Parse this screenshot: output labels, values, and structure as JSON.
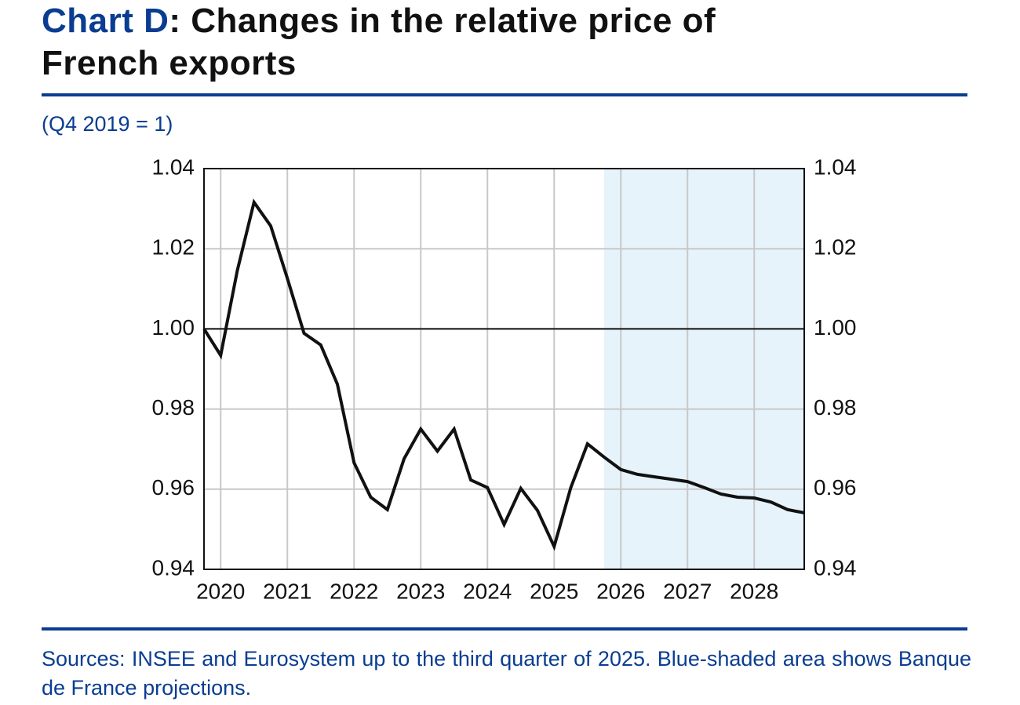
{
  "chart_data": {
    "type": "line",
    "title_prefix": "Chart D",
    "title": ": Changes in the relative price of French exports",
    "subtitle": "(Q4 2019 = 1)",
    "note": "Sources: INSEE and Eurosystem up to the third quarter of 2025. Blue-shaded area shows Banque de France projections.",
    "x": [
      2019.75,
      2020,
      2020.25,
      2020.5,
      2020.75,
      2021,
      2021.25,
      2021.5,
      2021.75,
      2022,
      2022.25,
      2022.5,
      2022.75,
      2023,
      2023.25,
      2023.5,
      2023.75,
      2024,
      2024.25,
      2024.5,
      2024.75,
      2025,
      2025.25,
      2025.5,
      2025.75,
      2026,
      2026.25,
      2026.5,
      2026.75,
      2027,
      2027.25,
      2027.5,
      2027.75,
      2028,
      2028.25,
      2028.5,
      2028.75
    ],
    "series": [
      {
        "name": "Relative price of French exports",
        "color": "#111111",
        "values": [
          1.0,
          0.9934,
          1.0146,
          1.0316,
          1.0257,
          1.0126,
          0.9989,
          0.996,
          0.9862,
          0.9666,
          0.958,
          0.9549,
          0.9676,
          0.975,
          0.9695,
          0.975,
          0.9623,
          0.9604,
          0.9512,
          0.9602,
          0.9547,
          0.9457,
          0.9604,
          0.9713,
          0.968,
          0.9649,
          0.9637,
          0.9631,
          0.9625,
          0.9619,
          0.9604,
          0.9588,
          0.958,
          0.9578,
          0.9568,
          0.9549,
          0.9541
        ]
      }
    ],
    "xlim": [
      2019.75,
      2028.75
    ],
    "xticks": [
      2020,
      2021,
      2022,
      2023,
      2024,
      2025,
      2026,
      2027,
      2028
    ],
    "ylim": [
      0.94,
      1.04
    ],
    "yticks": [
      0.94,
      0.96,
      0.98,
      {
        "value": 1,
        "label": "1.00"
      },
      1.02,
      1.04
    ],
    "reference_line": 1,
    "shaded_range": [
      2025.75,
      2028.75
    ],
    "shade_color": "#e6f3fb",
    "grid": true
  }
}
